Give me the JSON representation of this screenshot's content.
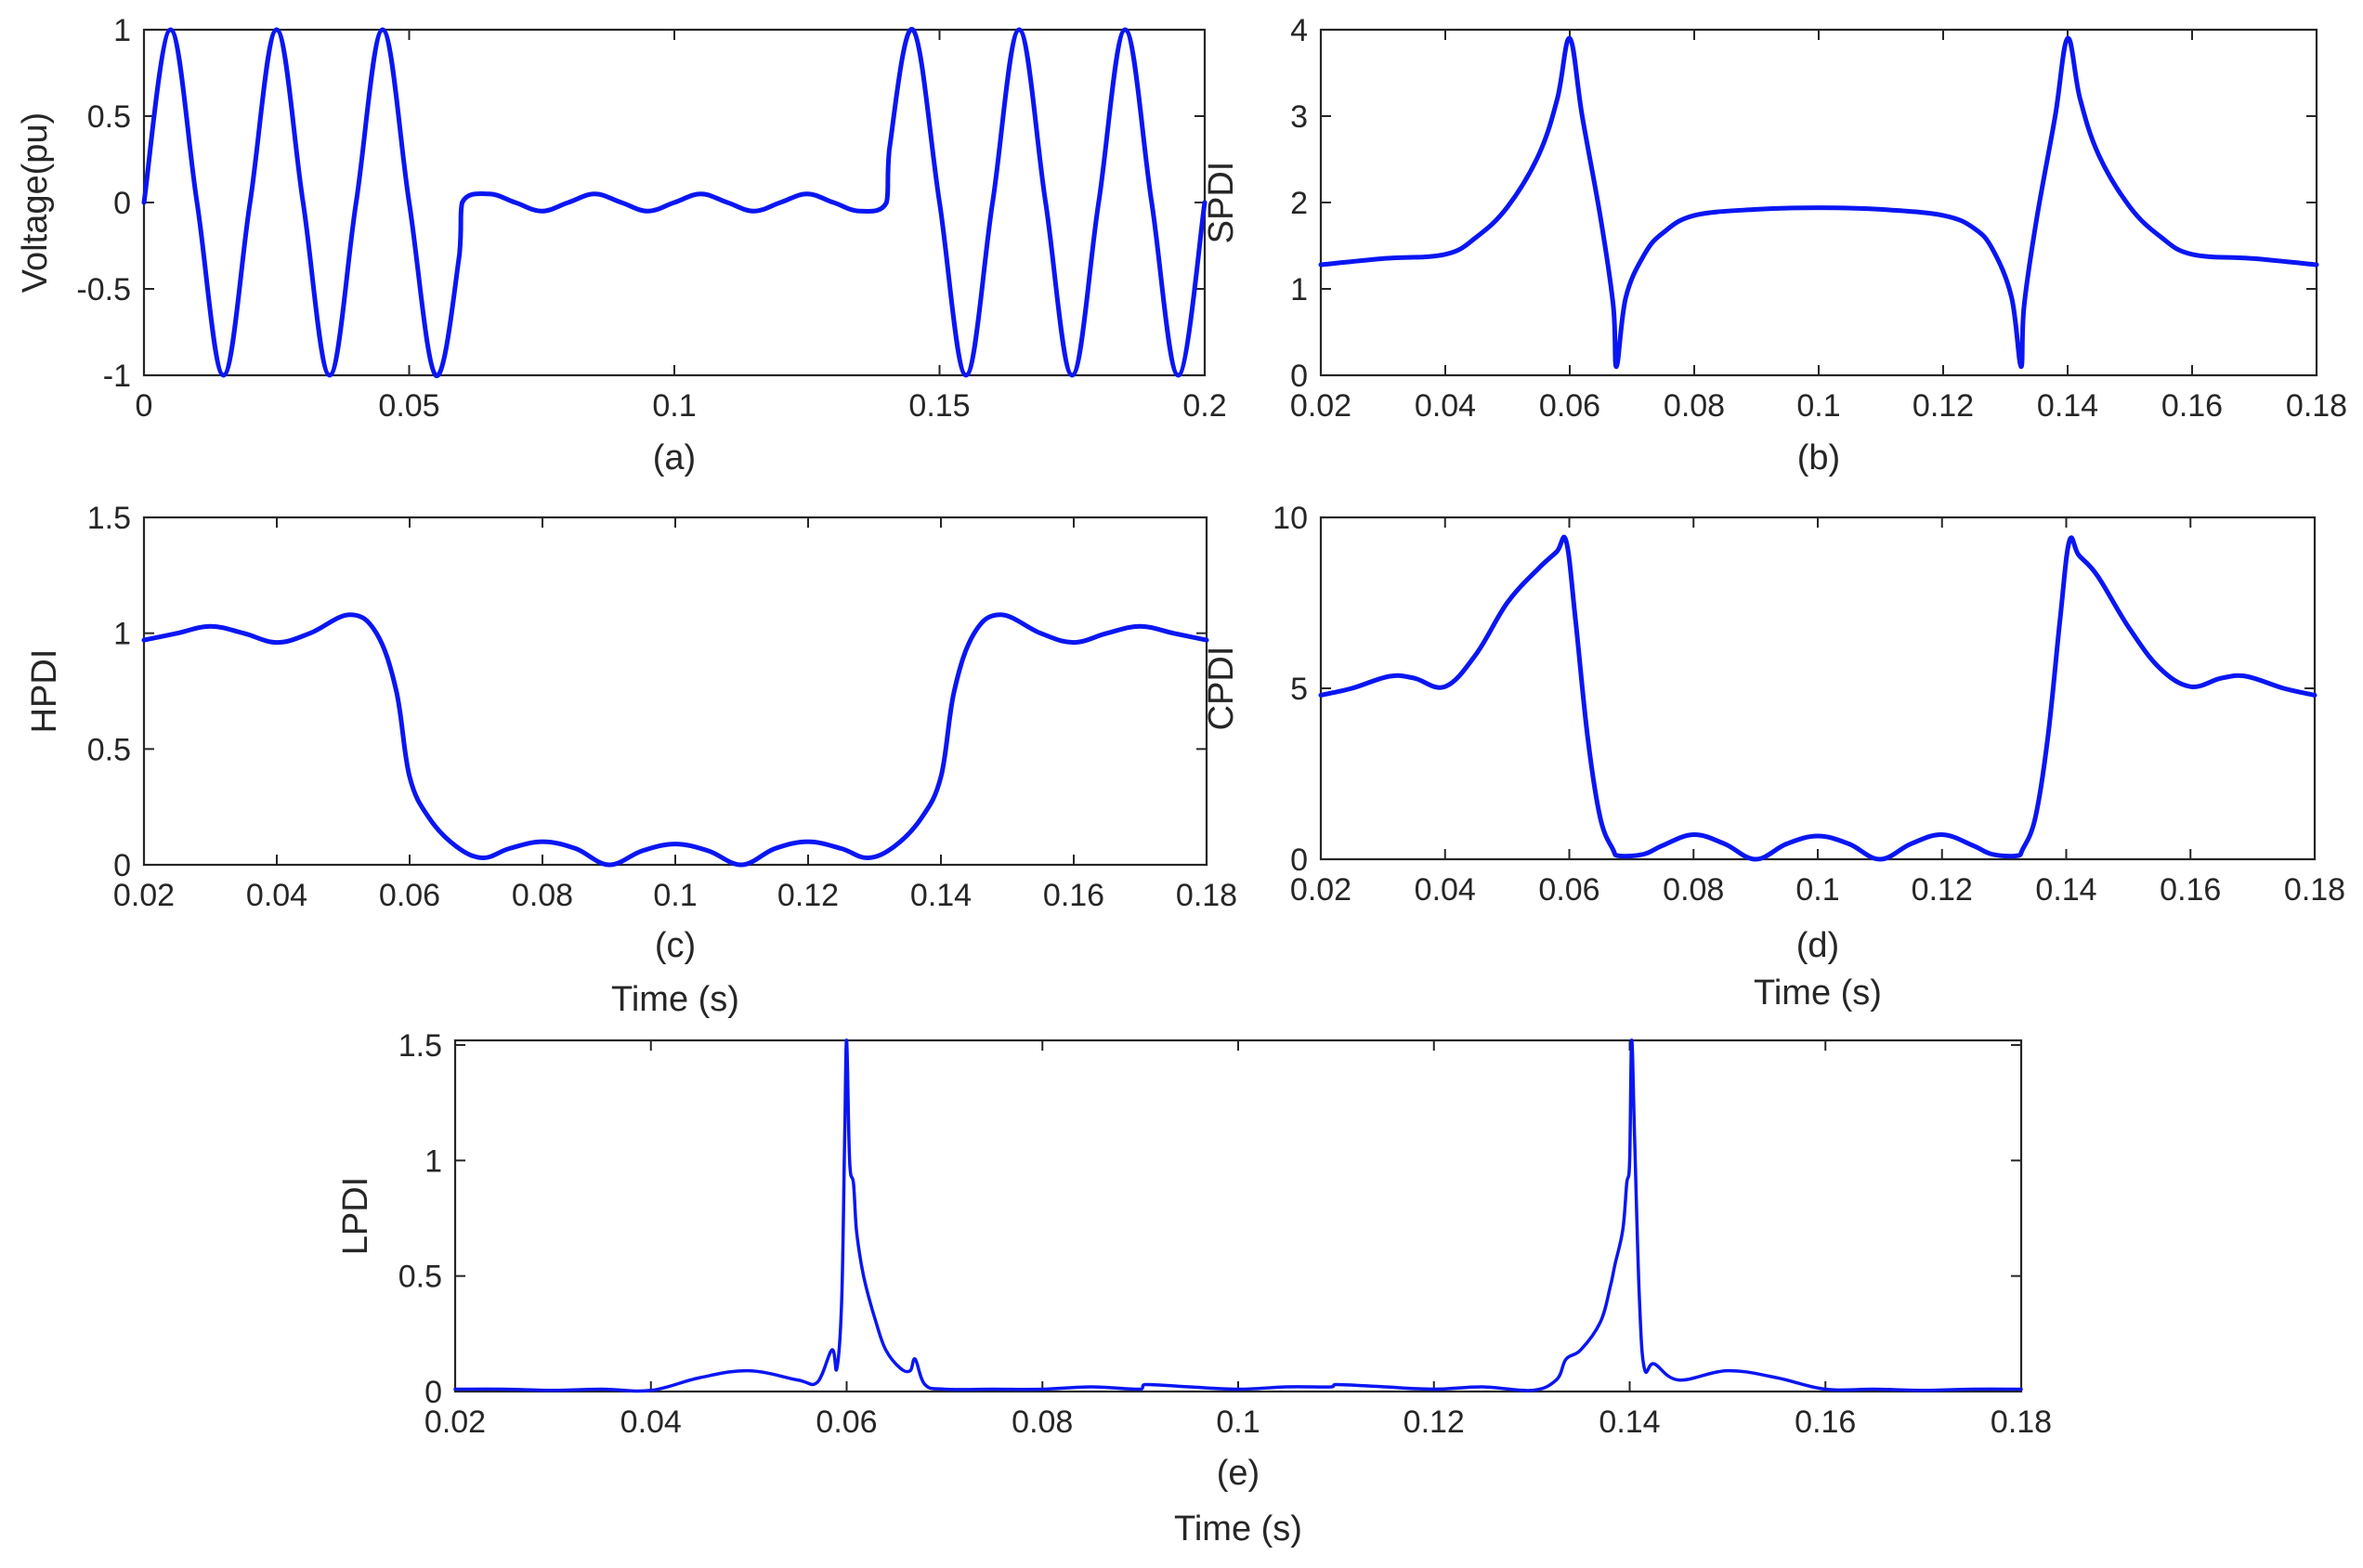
{
  "figure": {
    "line_color": "#0a16f2"
  },
  "chart_data": [
    {
      "id": "a",
      "type": "line",
      "panel_label": "(a)",
      "xlabel": "",
      "ylabel": "Voltage(pu)",
      "xlim": [
        0,
        0.2
      ],
      "ylim": [
        -1,
        1
      ],
      "xticks": [
        0,
        0.05,
        0.1,
        0.15,
        0.2
      ],
      "xtick_labels": [
        "0",
        "0.05",
        "0.1",
        "0.15",
        "0.2"
      ],
      "yticks": [
        -1,
        -0.5,
        0,
        0.5,
        1
      ],
      "ytick_labels": [
        "-1",
        "-0.5",
        "0",
        "0.5",
        "1"
      ],
      "grid": false,
      "series": [
        {
          "x": [
            0,
            0.005,
            0.01,
            0.015,
            0.02,
            0.025,
            0.03,
            0.035,
            0.04,
            0.045,
            0.05,
            0.055,
            0.0595,
            0.06,
            0.065,
            0.07,
            0.075,
            0.08,
            0.085,
            0.09,
            0.095,
            0.1,
            0.105,
            0.11,
            0.115,
            0.12,
            0.125,
            0.13,
            0.135,
            0.14,
            0.1405,
            0.145,
            0.15,
            0.155,
            0.16,
            0.165,
            0.17,
            0.175,
            0.18,
            0.185,
            0.19,
            0.195,
            0.2
          ],
          "y": [
            0,
            1,
            0,
            -1,
            0,
            1,
            0,
            -1,
            0,
            1,
            0,
            -1,
            -0.3,
            0,
            0.05,
            0,
            -0.05,
            0,
            0.05,
            0,
            -0.05,
            0,
            0.05,
            0,
            -0.05,
            0,
            0.05,
            0,
            -0.05,
            0,
            0.3,
            1,
            0,
            -1,
            0,
            1,
            0,
            -1,
            0,
            1,
            0,
            -1,
            0
          ]
        }
      ]
    },
    {
      "id": "b",
      "type": "line",
      "panel_label": "(b)",
      "xlabel": "",
      "ylabel": "SPDI",
      "xlim": [
        0.02,
        0.18
      ],
      "ylim": [
        0,
        4
      ],
      "xticks": [
        0.02,
        0.04,
        0.06,
        0.08,
        0.1,
        0.12,
        0.14,
        0.16,
        0.18
      ],
      "xtick_labels": [
        "0.02",
        "0.04",
        "0.06",
        "0.08",
        "0.1",
        "0.12",
        "0.14",
        "0.16",
        "0.18"
      ],
      "yticks": [
        0,
        1,
        2,
        3,
        4
      ],
      "ytick_labels": [
        "0",
        "1",
        "2",
        "3",
        "4"
      ],
      "grid": false,
      "series": [
        {
          "x": [
            0.02,
            0.03,
            0.04,
            0.045,
            0.05,
            0.055,
            0.058,
            0.06,
            0.062,
            0.065,
            0.067,
            0.0675,
            0.069,
            0.072,
            0.075,
            0.08,
            0.09,
            0.1,
            0.11,
            0.12,
            0.125,
            0.128,
            0.131,
            0.1325,
            0.133,
            0.135,
            0.138,
            0.14,
            0.142,
            0.145,
            0.15,
            0.155,
            0.16,
            0.17,
            0.18
          ],
          "y": [
            1.28,
            1.35,
            1.4,
            1.6,
            1.95,
            2.55,
            3.2,
            3.9,
            3.0,
            1.8,
            0.8,
            0.1,
            0.9,
            1.4,
            1.65,
            1.85,
            1.92,
            1.94,
            1.92,
            1.85,
            1.7,
            1.45,
            0.9,
            0.1,
            0.8,
            1.8,
            3.0,
            3.9,
            3.2,
            2.55,
            1.95,
            1.6,
            1.4,
            1.35,
            1.28
          ]
        }
      ]
    },
    {
      "id": "c",
      "type": "line",
      "panel_label": "(c)",
      "xlabel": "Time (s)",
      "ylabel": "HPDI",
      "xlim": [
        0.02,
        0.18
      ],
      "ylim": [
        0,
        1.5
      ],
      "xticks": [
        0.02,
        0.04,
        0.06,
        0.08,
        0.1,
        0.12,
        0.14,
        0.16,
        0.18
      ],
      "xtick_labels": [
        "0.02",
        "0.04",
        "0.06",
        "0.08",
        "0.1",
        "0.12",
        "0.14",
        "0.16",
        "0.18"
      ],
      "yticks": [
        0,
        0.5,
        1,
        1.5
      ],
      "ytick_labels": [
        "0",
        "0.5",
        "1",
        "1.5"
      ],
      "grid": false,
      "series": [
        {
          "x": [
            0.02,
            0.025,
            0.03,
            0.035,
            0.04,
            0.045,
            0.051,
            0.055,
            0.058,
            0.06,
            0.063,
            0.067,
            0.071,
            0.075,
            0.08,
            0.085,
            0.09,
            0.095,
            0.1,
            0.105,
            0.11,
            0.115,
            0.12,
            0.125,
            0.129,
            0.133,
            0.137,
            0.14,
            0.142,
            0.145,
            0.149,
            0.155,
            0.16,
            0.165,
            0.17,
            0.175,
            0.18
          ],
          "y": [
            0.97,
            1.0,
            1.03,
            1.0,
            0.96,
            1.0,
            1.08,
            1.0,
            0.75,
            0.38,
            0.2,
            0.08,
            0.03,
            0.07,
            0.1,
            0.07,
            0.0,
            0.06,
            0.09,
            0.06,
            0.0,
            0.07,
            0.1,
            0.07,
            0.03,
            0.08,
            0.2,
            0.38,
            0.75,
            1.0,
            1.08,
            1.0,
            0.96,
            1.0,
            1.03,
            1.0,
            0.97
          ]
        }
      ]
    },
    {
      "id": "d",
      "type": "line",
      "panel_label": "(d)",
      "xlabel": "Time (s)",
      "ylabel": "CPDI",
      "xlim": [
        0.02,
        0.18
      ],
      "ylim": [
        0,
        10
      ],
      "xticks": [
        0.02,
        0.04,
        0.06,
        0.08,
        0.1,
        0.12,
        0.14,
        0.16,
        0.18
      ],
      "xtick_labels": [
        "0.02",
        "0.04",
        "0.06",
        "0.08",
        "0.1",
        "0.12",
        "0.14",
        "0.16",
        "0.18"
      ],
      "yticks": [
        0,
        5,
        10
      ],
      "ytick_labels": [
        "0",
        "5",
        "10"
      ],
      "grid": false,
      "series": [
        {
          "x": [
            0.02,
            0.025,
            0.031,
            0.035,
            0.04,
            0.045,
            0.05,
            0.055,
            0.058,
            0.0595,
            0.061,
            0.063,
            0.065,
            0.067,
            0.068,
            0.072,
            0.075,
            0.08,
            0.085,
            0.09,
            0.095,
            0.1,
            0.105,
            0.11,
            0.115,
            0.12,
            0.125,
            0.128,
            0.132,
            0.133,
            0.135,
            0.137,
            0.139,
            0.1405,
            0.142,
            0.145,
            0.15,
            0.155,
            0.16,
            0.165,
            0.169,
            0.175,
            0.18
          ],
          "y": [
            4.8,
            5.0,
            5.35,
            5.3,
            5.05,
            6.0,
            7.5,
            8.5,
            9.0,
            9.3,
            7.0,
            3.5,
            1.2,
            0.3,
            0.1,
            0.15,
            0.4,
            0.72,
            0.45,
            0.0,
            0.45,
            0.68,
            0.45,
            0.0,
            0.45,
            0.72,
            0.4,
            0.15,
            0.1,
            0.3,
            1.2,
            3.5,
            7.0,
            9.3,
            8.9,
            8.3,
            6.8,
            5.6,
            5.05,
            5.3,
            5.35,
            5.0,
            4.8
          ]
        }
      ]
    },
    {
      "id": "e",
      "type": "line",
      "panel_label": "(e)",
      "xlabel": "Time (s)",
      "ylabel": "LPDI",
      "xlim": [
        0.02,
        0.18
      ],
      "ylim": [
        0,
        1.52
      ],
      "xticks": [
        0.02,
        0.04,
        0.06,
        0.08,
        0.1,
        0.12,
        0.14,
        0.16,
        0.18
      ],
      "xtick_labels": [
        "0.02",
        "0.04",
        "0.06",
        "0.08",
        "0.1",
        "0.12",
        "0.14",
        "0.16",
        "0.18"
      ],
      "yticks": [
        0,
        0.5,
        1,
        1.5
      ],
      "ytick_labels": [
        "0",
        "0.5",
        "1",
        "1.5"
      ],
      "grid": false,
      "series": [
        {
          "x": [
            0.02,
            0.025,
            0.03,
            0.035,
            0.04,
            0.045,
            0.05,
            0.055,
            0.057,
            0.0585,
            0.059,
            0.0595,
            0.0598,
            0.06,
            0.0603,
            0.0607,
            0.061,
            0.0615,
            0.062,
            0.063,
            0.064,
            0.0655,
            0.0665,
            0.067,
            0.068,
            0.07,
            0.075,
            0.08,
            0.085,
            0.09,
            0.0905,
            0.095,
            0.1,
            0.105,
            0.1095,
            0.11,
            0.115,
            0.12,
            0.125,
            0.13,
            0.1325,
            0.1335,
            0.135,
            0.137,
            0.138,
            0.1385,
            0.1393,
            0.1397,
            0.14,
            0.1402,
            0.1405,
            0.141,
            0.1415,
            0.1425,
            0.145,
            0.15,
            0.155,
            0.16,
            0.165,
            0.17,
            0.175,
            0.18
          ],
          "y": [
            0.01,
            0.01,
            0.005,
            0.01,
            0.005,
            0.06,
            0.09,
            0.05,
            0.04,
            0.18,
            0.1,
            0.4,
            1.1,
            1.52,
            1.0,
            0.9,
            0.7,
            0.55,
            0.45,
            0.3,
            0.18,
            0.1,
            0.09,
            0.14,
            0.03,
            0.01,
            0.01,
            0.01,
            0.02,
            0.01,
            0.03,
            0.02,
            0.01,
            0.02,
            0.02,
            0.03,
            0.02,
            0.01,
            0.02,
            0.005,
            0.05,
            0.14,
            0.18,
            0.3,
            0.45,
            0.55,
            0.7,
            0.9,
            1.0,
            1.52,
            1.1,
            0.4,
            0.1,
            0.12,
            0.05,
            0.09,
            0.06,
            0.01,
            0.01,
            0.005,
            0.01,
            0.01
          ]
        }
      ]
    }
  ]
}
